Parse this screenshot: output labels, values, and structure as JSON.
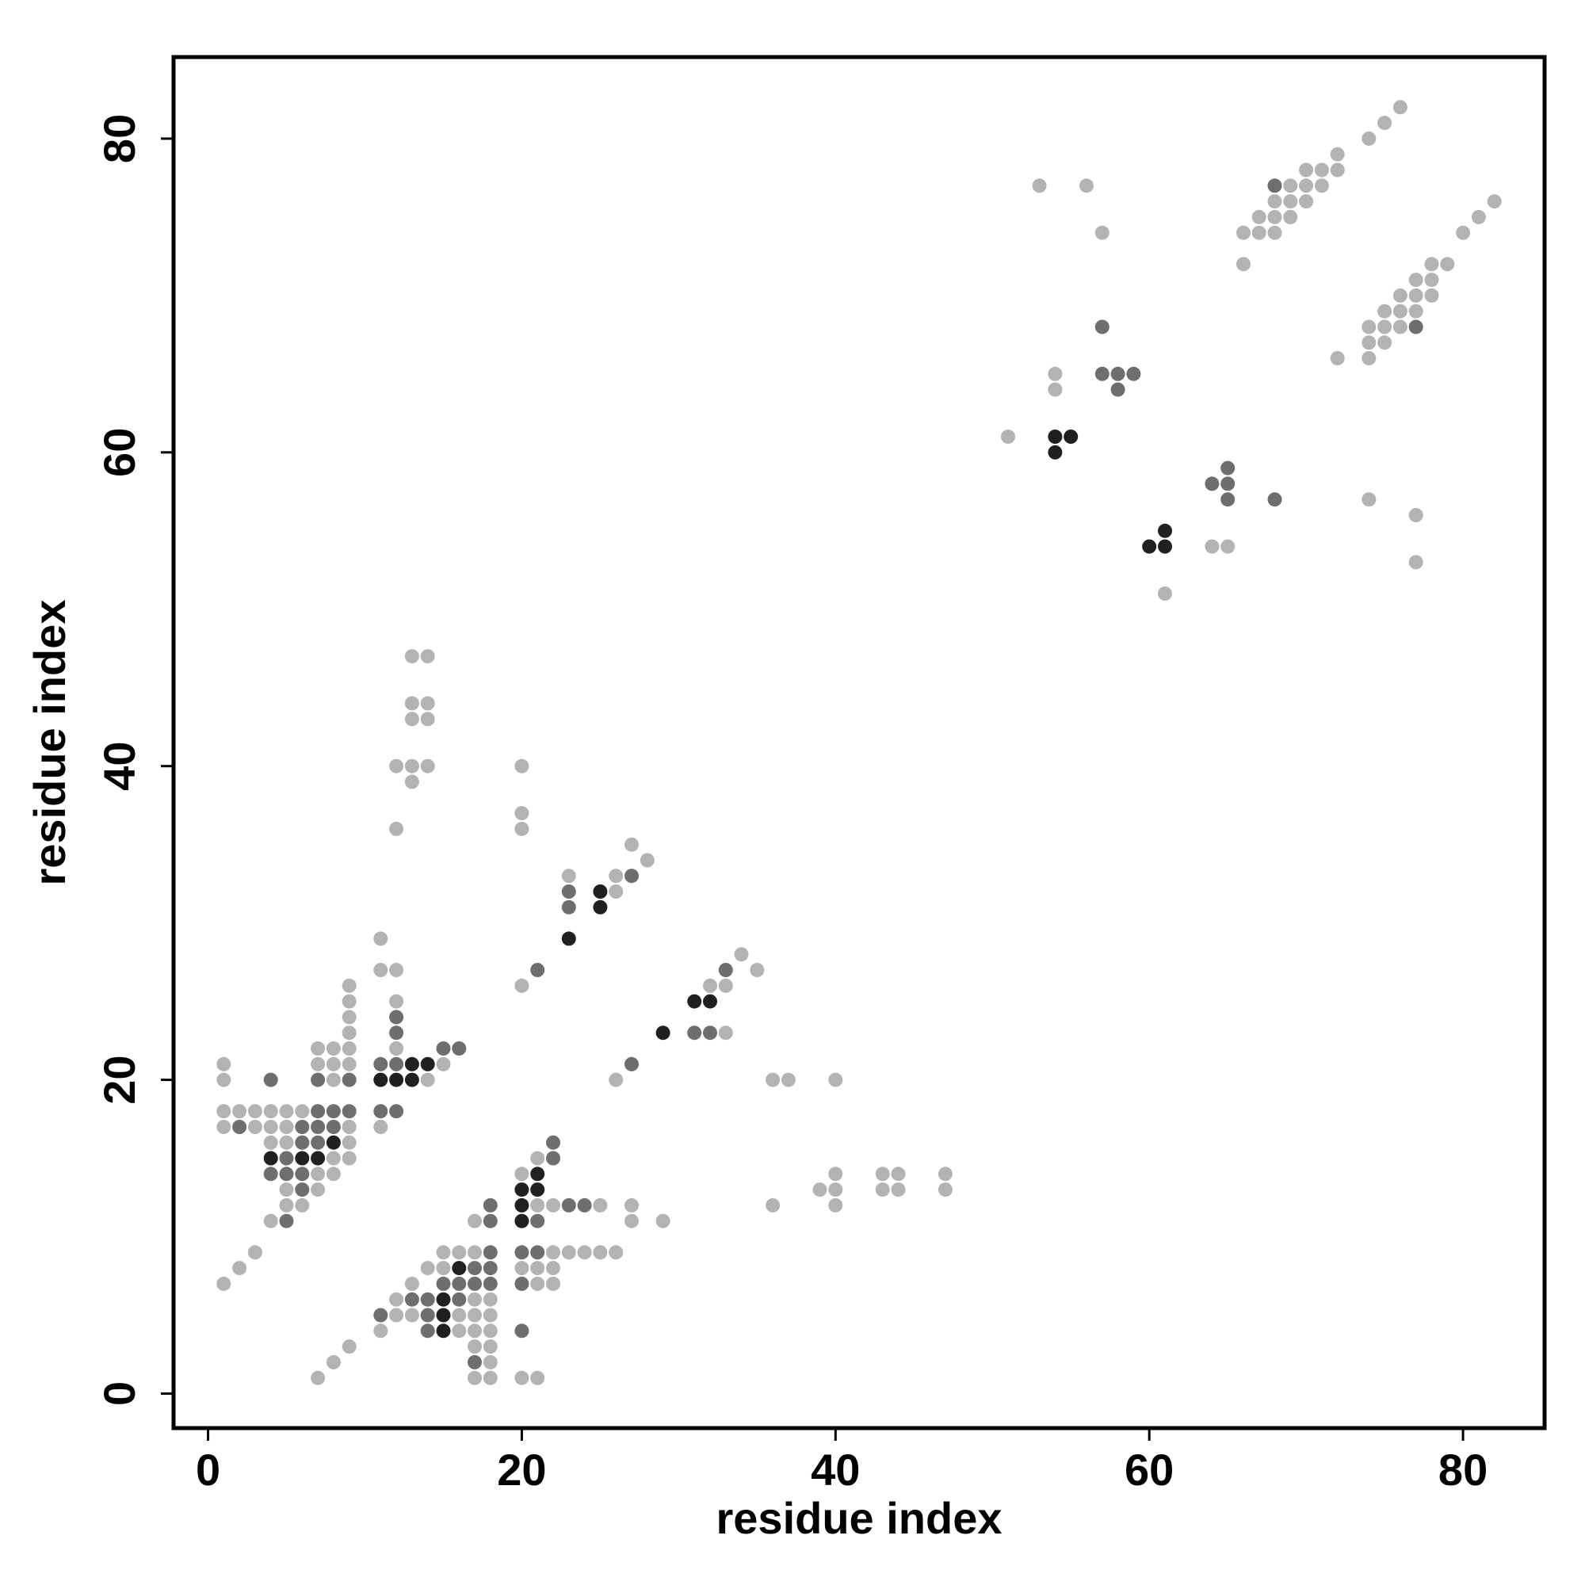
{
  "chart_data": {
    "type": "scatter",
    "title": "",
    "xlabel": "residue index",
    "ylabel": "residue index",
    "xlim": [
      -2.2,
      85.2
    ],
    "ylim": [
      -2.2,
      85.2
    ],
    "xticks": [
      0,
      20,
      40,
      60,
      80
    ],
    "yticks": [
      0,
      20,
      40,
      60,
      80
    ],
    "grid": false,
    "legend": "none",
    "colors": {
      "light": "#b3b3b3",
      "medium": "#6e6e6e",
      "dark": "#202020",
      "axis": "#000000"
    },
    "series": [
      {
        "level": "light",
        "points": [
          [
            1,
            21
          ],
          [
            1,
            20
          ],
          [
            1,
            18
          ],
          [
            2,
            18
          ],
          [
            3,
            18
          ],
          [
            4,
            18
          ],
          [
            5,
            18
          ],
          [
            6,
            18
          ],
          [
            1,
            17
          ],
          [
            3,
            17
          ],
          [
            4,
            17
          ],
          [
            5,
            17
          ],
          [
            4,
            16
          ],
          [
            5,
            16
          ],
          [
            5,
            13
          ],
          [
            5,
            12
          ],
          [
            6,
            12
          ],
          [
            4,
            11
          ],
          [
            1,
            7
          ],
          [
            2,
            8
          ],
          [
            3,
            9
          ],
          [
            7,
            22
          ],
          [
            8,
            22
          ],
          [
            9,
            22
          ],
          [
            7,
            21
          ],
          [
            8,
            21
          ],
          [
            9,
            21
          ],
          [
            8,
            20
          ],
          [
            9,
            26
          ],
          [
            9,
            25
          ],
          [
            9,
            24
          ],
          [
            9,
            23
          ],
          [
            9,
            17
          ],
          [
            9,
            16
          ],
          [
            9,
            15
          ],
          [
            8,
            15
          ],
          [
            8,
            14
          ],
          [
            7,
            14
          ],
          [
            7,
            13
          ],
          [
            6,
            16
          ],
          [
            11,
            29
          ],
          [
            11,
            27
          ],
          [
            12,
            27
          ],
          [
            12,
            25
          ],
          [
            12,
            22
          ],
          [
            11,
            17
          ],
          [
            15,
            21
          ],
          [
            14,
            20
          ],
          [
            13,
            47
          ],
          [
            14,
            47
          ],
          [
            13,
            44
          ],
          [
            14,
            44
          ],
          [
            13,
            43
          ],
          [
            14,
            43
          ],
          [
            12,
            40
          ],
          [
            13,
            40
          ],
          [
            14,
            40
          ],
          [
            13,
            39
          ],
          [
            12,
            36
          ],
          [
            20,
            40
          ],
          [
            20,
            37
          ],
          [
            20,
            36
          ],
          [
            20,
            26
          ],
          [
            23,
            33
          ],
          [
            26,
            33
          ],
          [
            27,
            35
          ],
          [
            28,
            34
          ],
          [
            26,
            32
          ],
          [
            27,
            12
          ],
          [
            27,
            11
          ],
          [
            33,
            26
          ],
          [
            34,
            28
          ],
          [
            35,
            27
          ],
          [
            33,
            23
          ],
          [
            32,
            26
          ],
          [
            26,
            20
          ],
          [
            29,
            11
          ],
          [
            36,
            20
          ],
          [
            37,
            20
          ],
          [
            40,
            20
          ],
          [
            36,
            12
          ],
          [
            39,
            13
          ],
          [
            40,
            13
          ],
          [
            40,
            14
          ],
          [
            40,
            12
          ],
          [
            43,
            14
          ],
          [
            44,
            14
          ],
          [
            43,
            13
          ],
          [
            44,
            13
          ],
          [
            47,
            14
          ],
          [
            47,
            13
          ],
          [
            20,
            14
          ],
          [
            20,
            11
          ],
          [
            21,
            15
          ],
          [
            21,
            12
          ],
          [
            22,
            12
          ],
          [
            25,
            12
          ],
          [
            22,
            9
          ],
          [
            23,
            9
          ],
          [
            24,
            9
          ],
          [
            25,
            9
          ],
          [
            26,
            9
          ],
          [
            20,
            8
          ],
          [
            21,
            8
          ],
          [
            22,
            8
          ],
          [
            21,
            7
          ],
          [
            22,
            7
          ],
          [
            20,
            1
          ],
          [
            21,
            1
          ],
          [
            17,
            11
          ],
          [
            11,
            4
          ],
          [
            12,
            6
          ],
          [
            12,
            5
          ],
          [
            13,
            7
          ],
          [
            13,
            5
          ],
          [
            14,
            8
          ],
          [
            15,
            9
          ],
          [
            16,
            9
          ],
          [
            17,
            9
          ],
          [
            15,
            8
          ],
          [
            17,
            6
          ],
          [
            18,
            6
          ],
          [
            18,
            5
          ],
          [
            16,
            5
          ],
          [
            17,
            5
          ],
          [
            18,
            4
          ],
          [
            16,
            4
          ],
          [
            17,
            4
          ],
          [
            17,
            3
          ],
          [
            18,
            3
          ],
          [
            18,
            2
          ],
          [
            17,
            1
          ],
          [
            18,
            1
          ],
          [
            7,
            1
          ],
          [
            8,
            2
          ],
          [
            9,
            3
          ],
          [
            51,
            61
          ],
          [
            53,
            77
          ],
          [
            56,
            77
          ],
          [
            57,
            74
          ],
          [
            54,
            65
          ],
          [
            54,
            64
          ],
          [
            61,
            51
          ],
          [
            64,
            54
          ],
          [
            65,
            54
          ],
          [
            66,
            74
          ],
          [
            67,
            74
          ],
          [
            66,
            72
          ],
          [
            67,
            75
          ],
          [
            68,
            74
          ],
          [
            68,
            75
          ],
          [
            68,
            76
          ],
          [
            69,
            75
          ],
          [
            69,
            76
          ],
          [
            69,
            77
          ],
          [
            70,
            76
          ],
          [
            70,
            77
          ],
          [
            71,
            77
          ],
          [
            70,
            78
          ],
          [
            71,
            78
          ],
          [
            72,
            78
          ],
          [
            72,
            79
          ],
          [
            74,
            80
          ],
          [
            75,
            81
          ],
          [
            76,
            82
          ],
          [
            72,
            66
          ],
          [
            74,
            66
          ],
          [
            74,
            67
          ],
          [
            74,
            68
          ],
          [
            75,
            67
          ],
          [
            75,
            68
          ],
          [
            75,
            69
          ],
          [
            76,
            68
          ],
          [
            76,
            69
          ],
          [
            76,
            70
          ],
          [
            77,
            69
          ],
          [
            77,
            70
          ],
          [
            77,
            71
          ],
          [
            78,
            70
          ],
          [
            78,
            71
          ],
          [
            78,
            72
          ],
          [
            79,
            72
          ],
          [
            80,
            74
          ],
          [
            81,
            75
          ],
          [
            82,
            76
          ],
          [
            74,
            57
          ],
          [
            77,
            56
          ],
          [
            77,
            53
          ]
        ]
      },
      {
        "level": "medium",
        "points": [
          [
            2,
            17
          ],
          [
            4,
            20
          ],
          [
            4,
            14
          ],
          [
            5,
            15
          ],
          [
            5,
            14
          ],
          [
            5,
            11
          ],
          [
            6,
            17
          ],
          [
            6,
            16
          ],
          [
            6,
            14
          ],
          [
            6,
            13
          ],
          [
            7,
            18
          ],
          [
            7,
            17
          ],
          [
            7,
            16
          ],
          [
            8,
            18
          ],
          [
            8,
            17
          ],
          [
            7,
            20
          ],
          [
            9,
            20
          ],
          [
            9,
            18
          ],
          [
            12,
            24
          ],
          [
            12,
            23
          ],
          [
            11,
            21
          ],
          [
            12,
            21
          ],
          [
            11,
            18
          ],
          [
            12,
            18
          ],
          [
            15,
            22
          ],
          [
            16,
            22
          ],
          [
            23,
            32
          ],
          [
            23,
            31
          ],
          [
            27,
            33
          ],
          [
            21,
            27
          ],
          [
            27,
            21
          ],
          [
            31,
            23
          ],
          [
            32,
            23
          ],
          [
            33,
            27
          ],
          [
            22,
            16
          ],
          [
            22,
            15
          ],
          [
            21,
            11
          ],
          [
            23,
            12
          ],
          [
            24,
            12
          ],
          [
            20,
            9
          ],
          [
            21,
            9
          ],
          [
            20,
            7
          ],
          [
            20,
            4
          ],
          [
            11,
            5
          ],
          [
            13,
            6
          ],
          [
            14,
            6
          ],
          [
            14,
            5
          ],
          [
            14,
            4
          ],
          [
            15,
            7
          ],
          [
            16,
            7
          ],
          [
            16,
            6
          ],
          [
            17,
            8
          ],
          [
            17,
            7
          ],
          [
            18,
            12
          ],
          [
            18,
            11
          ],
          [
            18,
            9
          ],
          [
            18,
            8
          ],
          [
            18,
            7
          ],
          [
            17,
            2
          ],
          [
            57,
            68
          ],
          [
            57,
            65
          ],
          [
            58,
            65
          ],
          [
            58,
            64
          ],
          [
            59,
            65
          ],
          [
            64,
            58
          ],
          [
            65,
            59
          ],
          [
            65,
            58
          ],
          [
            65,
            57
          ],
          [
            68,
            57
          ],
          [
            68,
            77
          ],
          [
            77,
            68
          ]
        ]
      },
      {
        "level": "dark",
        "points": [
          [
            4,
            15
          ],
          [
            6,
            15
          ],
          [
            7,
            15
          ],
          [
            8,
            16
          ],
          [
            11,
            20
          ],
          [
            12,
            20
          ],
          [
            13,
            20
          ],
          [
            13,
            21
          ],
          [
            14,
            21
          ],
          [
            23,
            29
          ],
          [
            25,
            32
          ],
          [
            25,
            31
          ],
          [
            29,
            23
          ],
          [
            31,
            25
          ],
          [
            32,
            25
          ],
          [
            21,
            14
          ],
          [
            20,
            13
          ],
          [
            21,
            13
          ],
          [
            20,
            12
          ],
          [
            20,
            11
          ],
          [
            15,
            6
          ],
          [
            15,
            5
          ],
          [
            15,
            4
          ],
          [
            16,
            8
          ],
          [
            54,
            61
          ],
          [
            55,
            61
          ],
          [
            54,
            60
          ],
          [
            60,
            54
          ],
          [
            61,
            54
          ],
          [
            61,
            55
          ]
        ]
      }
    ]
  }
}
